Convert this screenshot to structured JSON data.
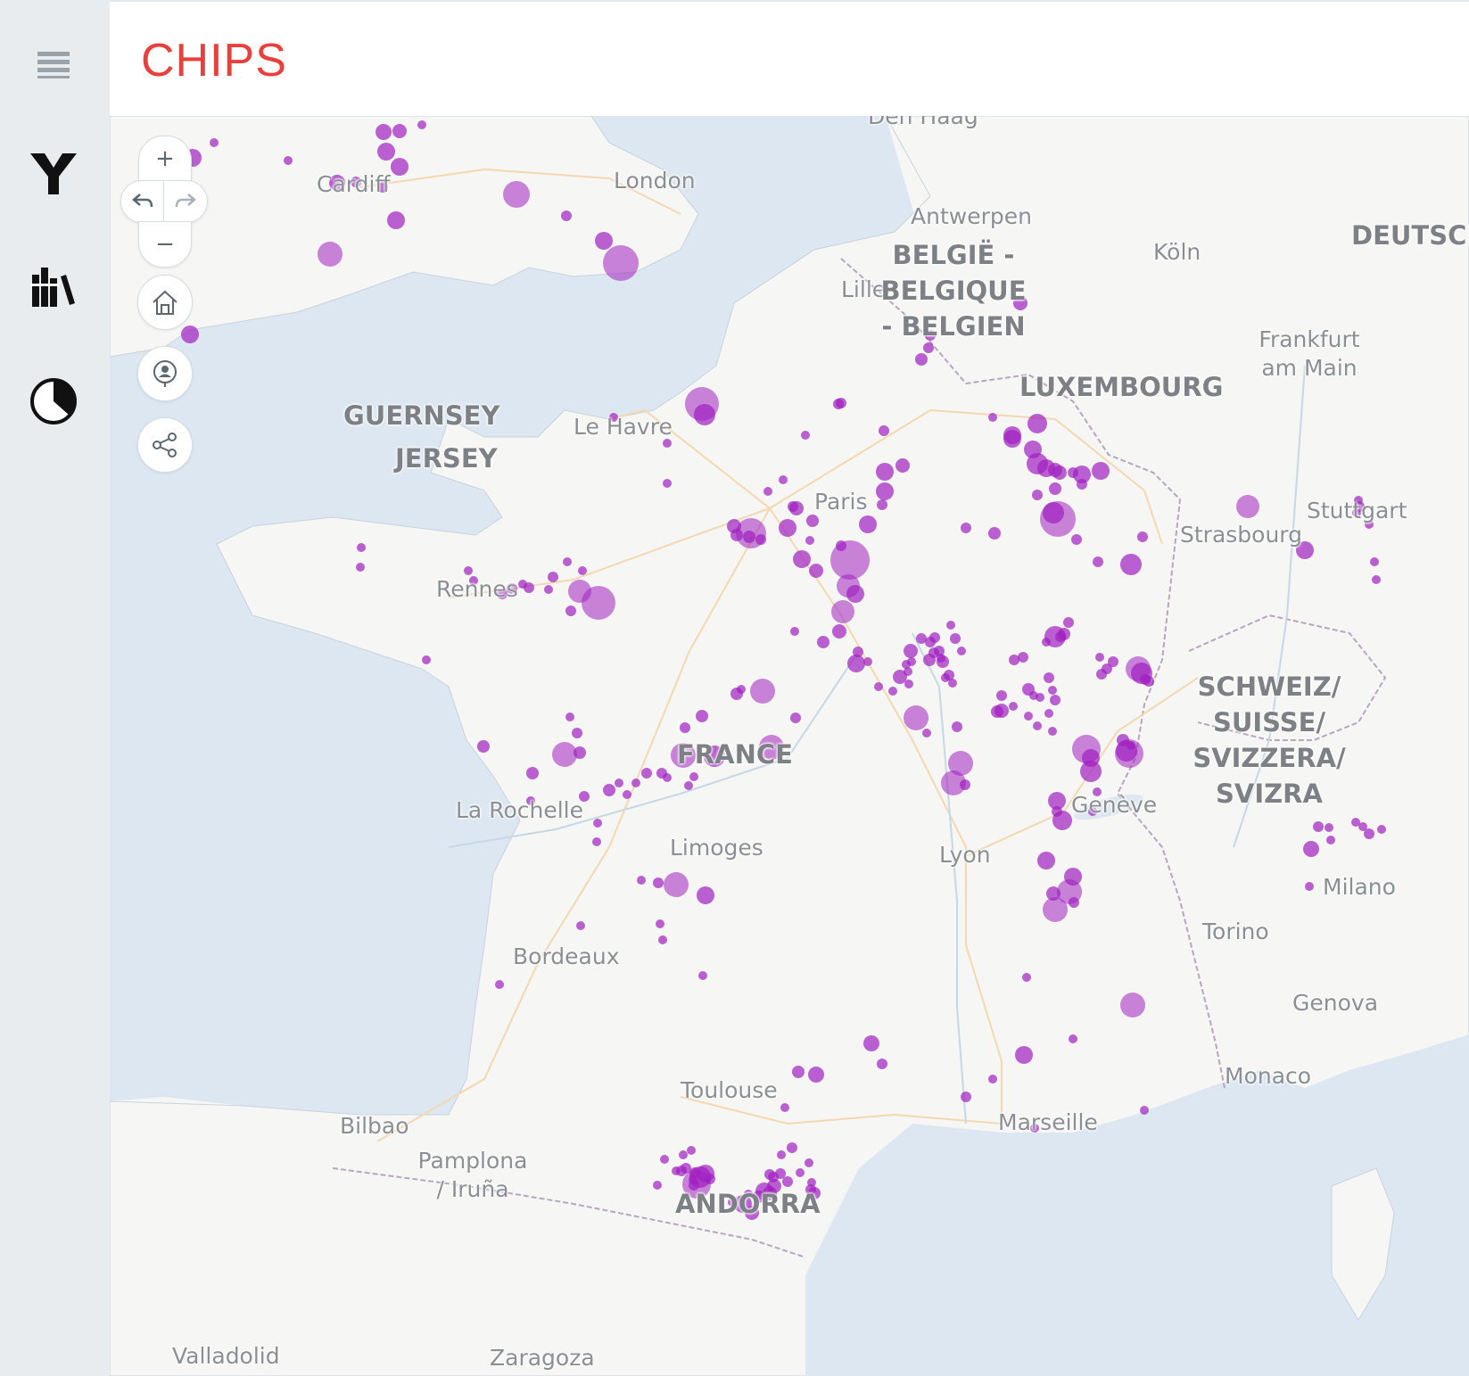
{
  "header": {
    "title": "CHIPS"
  },
  "sidebar": {
    "items": [
      {
        "name": "menu",
        "icon": "hamburger-menu-icon"
      },
      {
        "name": "filter",
        "icon": "y-branch-icon"
      },
      {
        "name": "library",
        "icon": "books-icon"
      },
      {
        "name": "chart",
        "icon": "pie-chart-icon"
      }
    ]
  },
  "map_controls": {
    "zoom_in": "+",
    "zoom_out": "−",
    "undo_icon": "undo-arrow-icon",
    "redo_icon": "redo-arrow-icon",
    "home_icon": "home-icon",
    "locate_icon": "locate-user-icon",
    "share_icon": "share-icon"
  },
  "map": {
    "cities": [
      "Den Haag",
      "London",
      "Cardiff",
      "Antwerpen",
      "Köln",
      "Lille",
      "Frankfurt am Main",
      "Le Havre",
      "Paris",
      "Stuttgart",
      "Strasbourg",
      "Rennes",
      "FRANCE",
      "La Rochelle",
      "Limoges",
      "Genève",
      "Lyon",
      "Milano",
      "Torino",
      "Bordeaux",
      "Genova",
      "Monaco",
      "Toulouse",
      "Marseille",
      "Bilbao",
      "Pamplona / Iruña",
      "Valladolid",
      "Zaragoza"
    ],
    "countries": [
      "GUERNSEY",
      "JERSEY",
      "BELGIË - BELGIQUE - BELGIEN",
      "LUXEMBOURG",
      "DEUTSCHLAND",
      "SCHWEIZ/ SUISSE/ SVIZZERA/ SVIZRA",
      "ANDORRA"
    ],
    "colors": {
      "sea": "#dce6f0",
      "land": "#f6f6f4",
      "marker": "#a020c0",
      "title": "#e8403c"
    }
  }
}
